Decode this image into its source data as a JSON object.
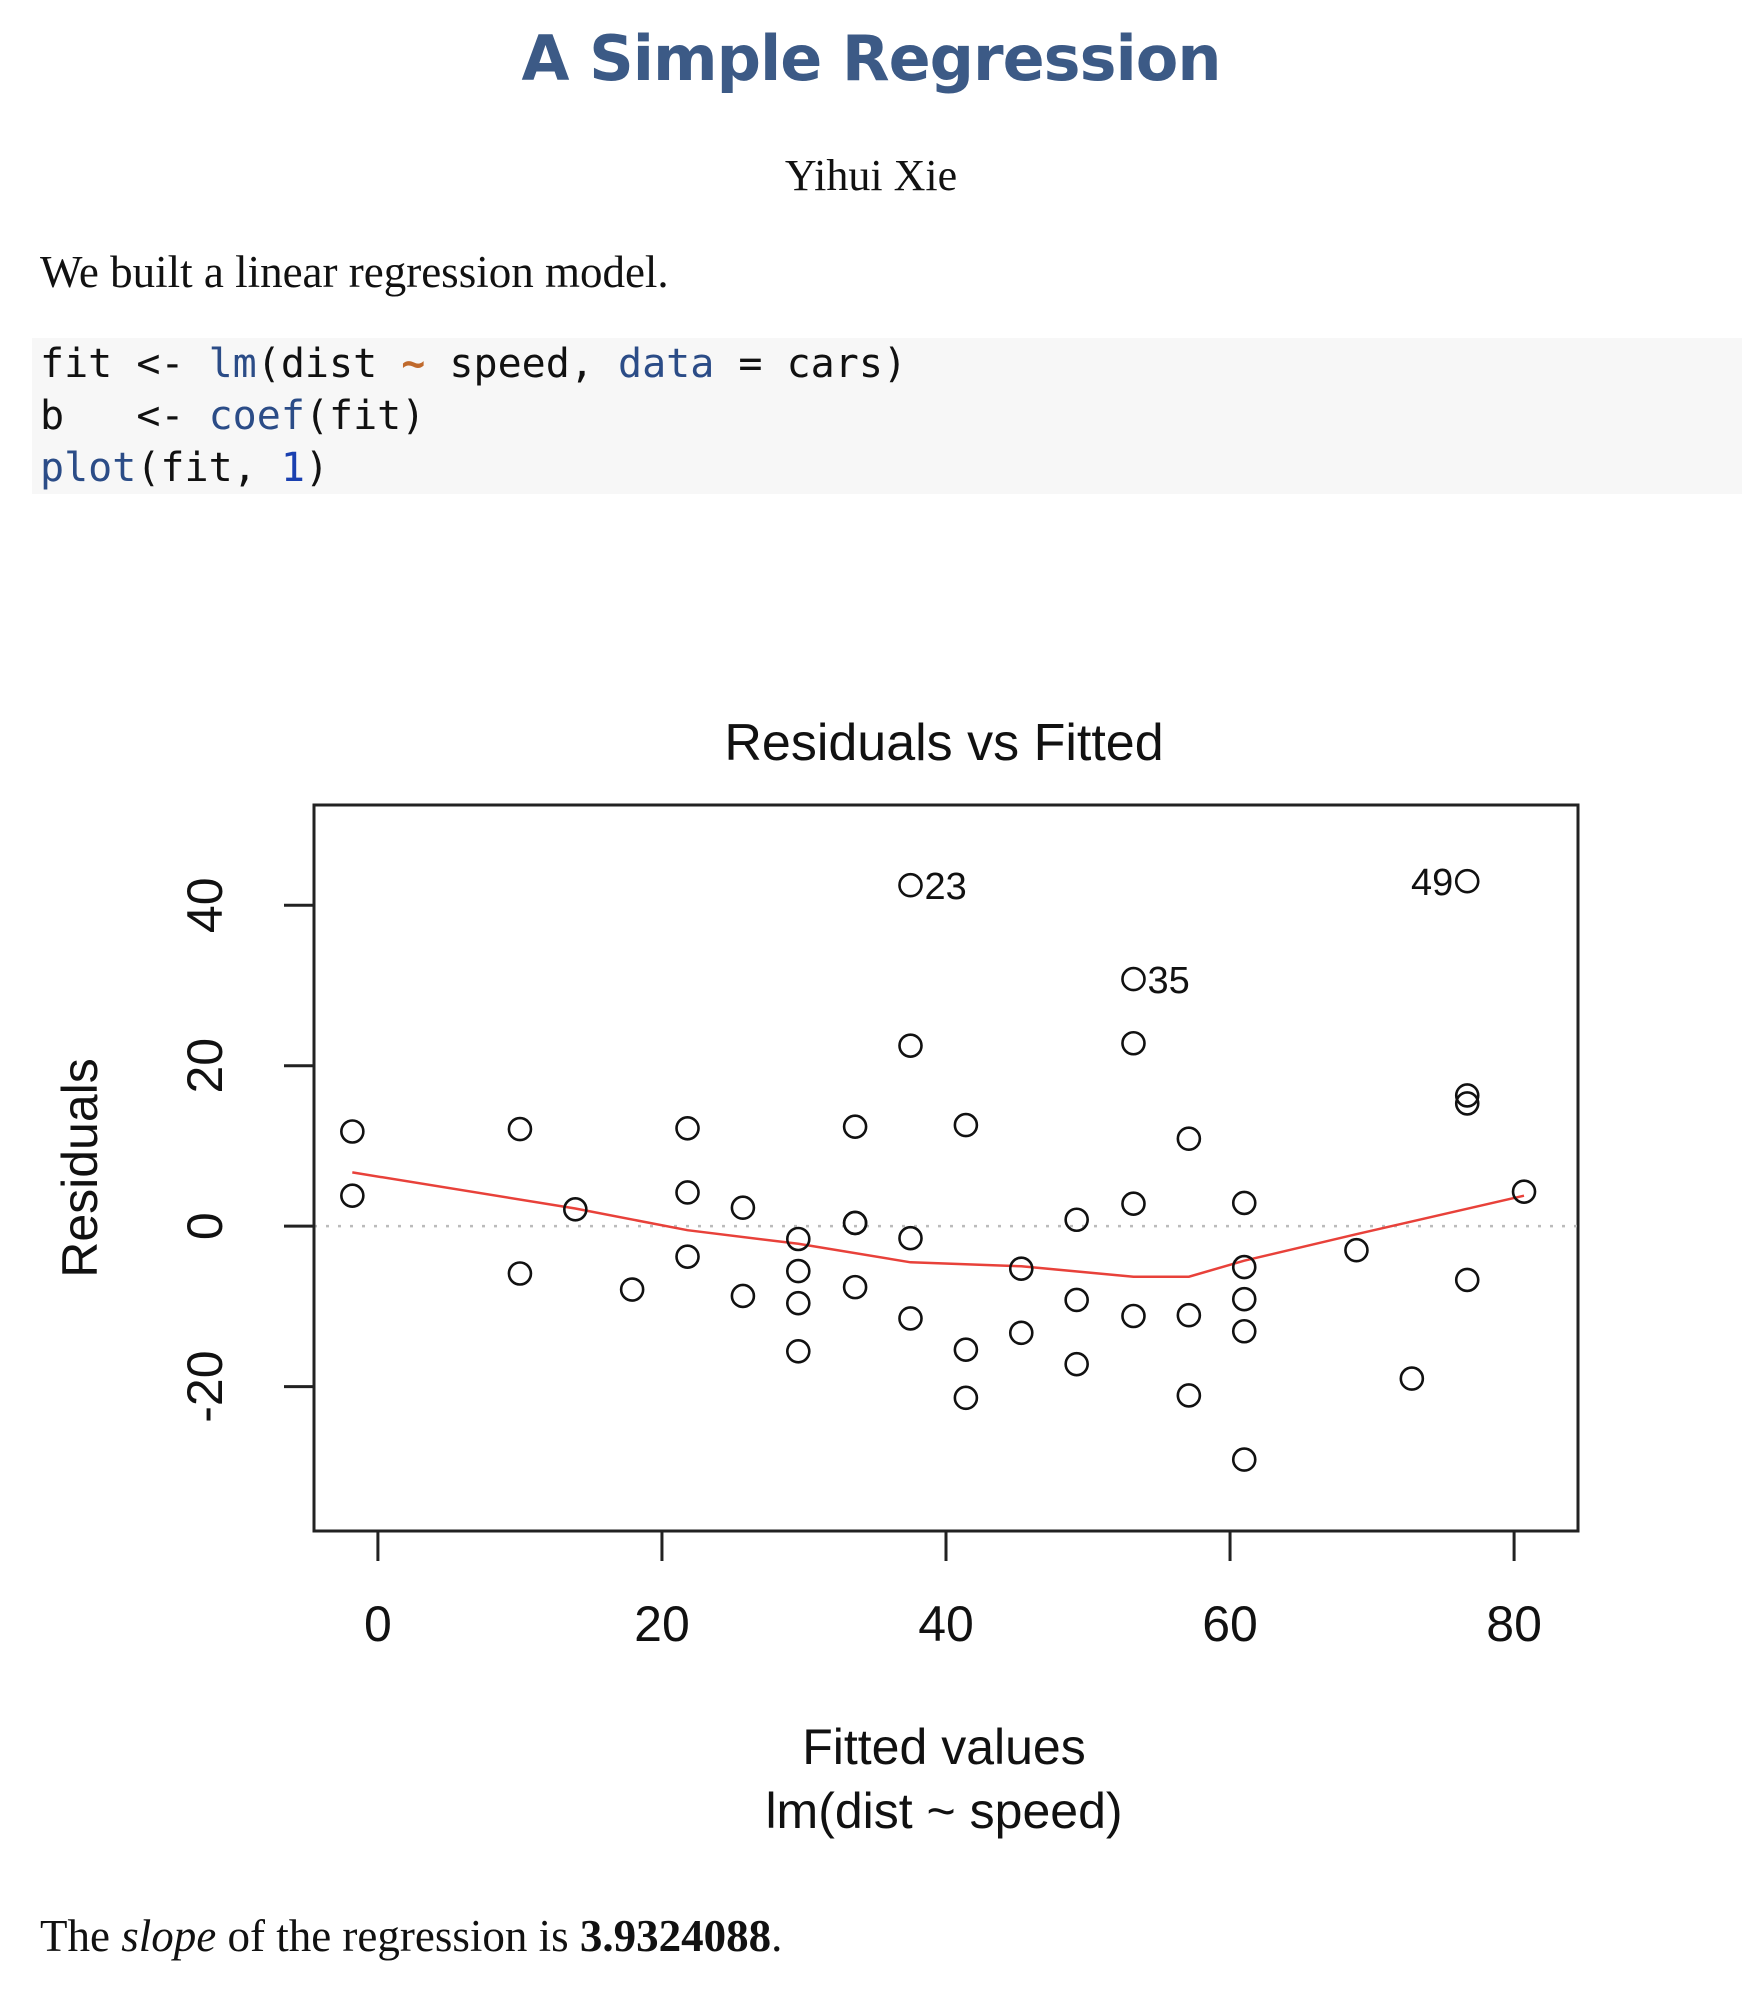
{
  "document": {
    "title": "A Simple Regression",
    "author": "Yihui Xie",
    "intro_text": "We built a linear regression model.",
    "code_lines": [
      {
        "tokens": [
          {
            "t": "fit <- ",
            "c": ""
          },
          {
            "t": "lm",
            "c": "fn"
          },
          {
            "t": "(dist ",
            "c": ""
          },
          {
            "t": "~",
            "c": "tilde"
          },
          {
            "t": " speed, ",
            "c": ""
          },
          {
            "t": "data",
            "c": "arg"
          },
          {
            "t": " = cars)",
            "c": ""
          }
        ]
      },
      {
        "tokens": [
          {
            "t": "b   <- ",
            "c": ""
          },
          {
            "t": "coef",
            "c": "fn"
          },
          {
            "t": "(fit)",
            "c": ""
          }
        ]
      },
      {
        "tokens": [
          {
            "t": "plot",
            "c": "fn"
          },
          {
            "t": "(fit, ",
            "c": ""
          },
          {
            "t": "1",
            "c": "num"
          },
          {
            "t": ")",
            "c": ""
          }
        ]
      }
    ],
    "result_text": {
      "before": "The ",
      "emph": "slope",
      "middle": " of the regression is ",
      "value": "3.9324088",
      "after": "."
    }
  },
  "chart_data": {
    "type": "scatter",
    "title": "Residuals vs Fitted",
    "xlabel": "Fitted values",
    "xlabel_sub": "lm(dist ~ speed)",
    "ylabel": "Residuals",
    "xlim": [
      -4.5,
      84.5
    ],
    "ylim": [
      -38,
      52.5
    ],
    "xticks": [
      0,
      20,
      40,
      60,
      80
    ],
    "yticks": [
      -20,
      0,
      20,
      40
    ],
    "colors": {
      "smooth": "#e8413a",
      "points": "#111111",
      "reference": "#bbbbbb"
    },
    "points": [
      {
        "x": -1.8,
        "y": 3.8
      },
      {
        "x": -1.8,
        "y": 11.8
      },
      {
        "x": 10.0,
        "y": -5.9
      },
      {
        "x": 10.0,
        "y": 12.1
      },
      {
        "x": 13.9,
        "y": 2.1
      },
      {
        "x": 17.9,
        "y": -7.9
      },
      {
        "x": 21.8,
        "y": -3.8
      },
      {
        "x": 21.8,
        "y": 4.2
      },
      {
        "x": 21.8,
        "y": 12.2
      },
      {
        "x": 25.7,
        "y": -8.7
      },
      {
        "x": 25.7,
        "y": 2.3
      },
      {
        "x": 29.6,
        "y": -15.6
      },
      {
        "x": 29.6,
        "y": -9.6
      },
      {
        "x": 29.6,
        "y": -5.6
      },
      {
        "x": 29.6,
        "y": -1.6
      },
      {
        "x": 33.6,
        "y": -7.6
      },
      {
        "x": 33.6,
        "y": 0.4
      },
      {
        "x": 33.6,
        "y": 0.4
      },
      {
        "x": 33.6,
        "y": 12.4
      },
      {
        "x": 37.5,
        "y": -11.5
      },
      {
        "x": 37.5,
        "y": -1.5
      },
      {
        "x": 37.5,
        "y": 22.5
      },
      {
        "x": 37.5,
        "y": 42.5
      },
      {
        "x": 41.4,
        "y": -21.4
      },
      {
        "x": 41.4,
        "y": -15.4
      },
      {
        "x": 41.4,
        "y": 12.6
      },
      {
        "x": 45.3,
        "y": -13.3
      },
      {
        "x": 45.3,
        "y": -5.3
      },
      {
        "x": 49.2,
        "y": -17.2
      },
      {
        "x": 49.2,
        "y": -9.2
      },
      {
        "x": 49.2,
        "y": 0.8
      },
      {
        "x": 53.2,
        "y": -11.2
      },
      {
        "x": 53.2,
        "y": 2.8
      },
      {
        "x": 53.2,
        "y": 22.8
      },
      {
        "x": 53.2,
        "y": 30.8
      },
      {
        "x": 57.1,
        "y": -21.1
      },
      {
        "x": 57.1,
        "y": -11.1
      },
      {
        "x": 57.1,
        "y": 10.9
      },
      {
        "x": 61.0,
        "y": -29.1
      },
      {
        "x": 61.0,
        "y": -13.1
      },
      {
        "x": 61.0,
        "y": -9.1
      },
      {
        "x": 61.0,
        "y": -5.1
      },
      {
        "x": 61.0,
        "y": 2.9
      },
      {
        "x": 68.9,
        "y": -3.0
      },
      {
        "x": 72.8,
        "y": -19.0
      },
      {
        "x": 76.7,
        "y": -6.7
      },
      {
        "x": 76.7,
        "y": 15.3
      },
      {
        "x": 76.7,
        "y": 16.3
      },
      {
        "x": 76.7,
        "y": 43.0
      },
      {
        "x": 80.7,
        "y": 4.3
      }
    ],
    "labeled_points": [
      {
        "label": "23",
        "x": 37.5,
        "y": 42.5,
        "side": "right"
      },
      {
        "label": "35",
        "x": 53.2,
        "y": 30.8,
        "side": "right"
      },
      {
        "label": "49",
        "x": 76.7,
        "y": 43.0,
        "side": "left"
      }
    ],
    "smooth_line": [
      {
        "x": -1.8,
        "y": 6.7
      },
      {
        "x": 13.9,
        "y": 2.2
      },
      {
        "x": 21.8,
        "y": -0.5
      },
      {
        "x": 29.6,
        "y": -2.2
      },
      {
        "x": 37.5,
        "y": -4.5
      },
      {
        "x": 45.3,
        "y": -5.0
      },
      {
        "x": 53.2,
        "y": -6.3
      },
      {
        "x": 57.1,
        "y": -6.3
      },
      {
        "x": 61.0,
        "y": -4.3
      },
      {
        "x": 68.9,
        "y": -1.0
      },
      {
        "x": 80.7,
        "y": 3.8
      }
    ],
    "reference_line_y": 0
  }
}
